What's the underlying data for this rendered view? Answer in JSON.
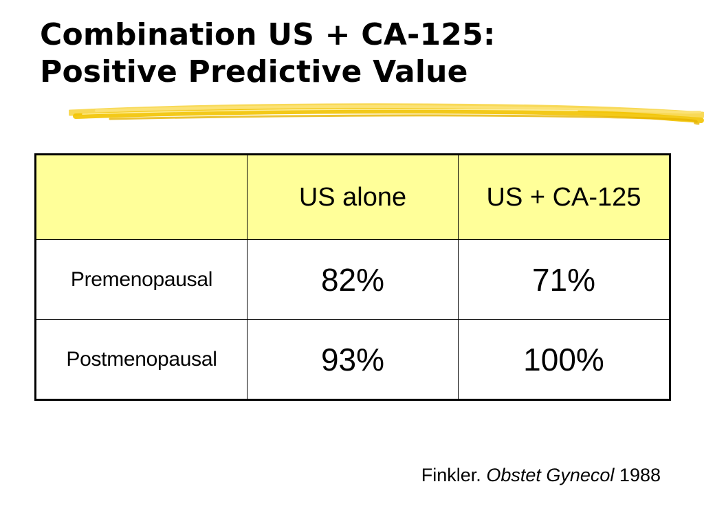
{
  "title": {
    "line1": "Combination US + CA-125:",
    "line2": "Positive Predictive Value"
  },
  "colors": {
    "header_fill": "#ffff99",
    "brush_stroke": "#f2c300",
    "border": "#000000"
  },
  "table": {
    "columns": [
      "",
      "US alone",
      "US + CA-125"
    ],
    "rows": [
      {
        "label": "Premenopausal",
        "us_alone": "82%",
        "us_ca125": "71%"
      },
      {
        "label": "Postmenopausal",
        "us_alone": "93%",
        "us_ca125": "100%"
      }
    ]
  },
  "citation": {
    "author": "Finkler.",
    "journal": "Obstet Gynecol",
    "year": "1988"
  }
}
